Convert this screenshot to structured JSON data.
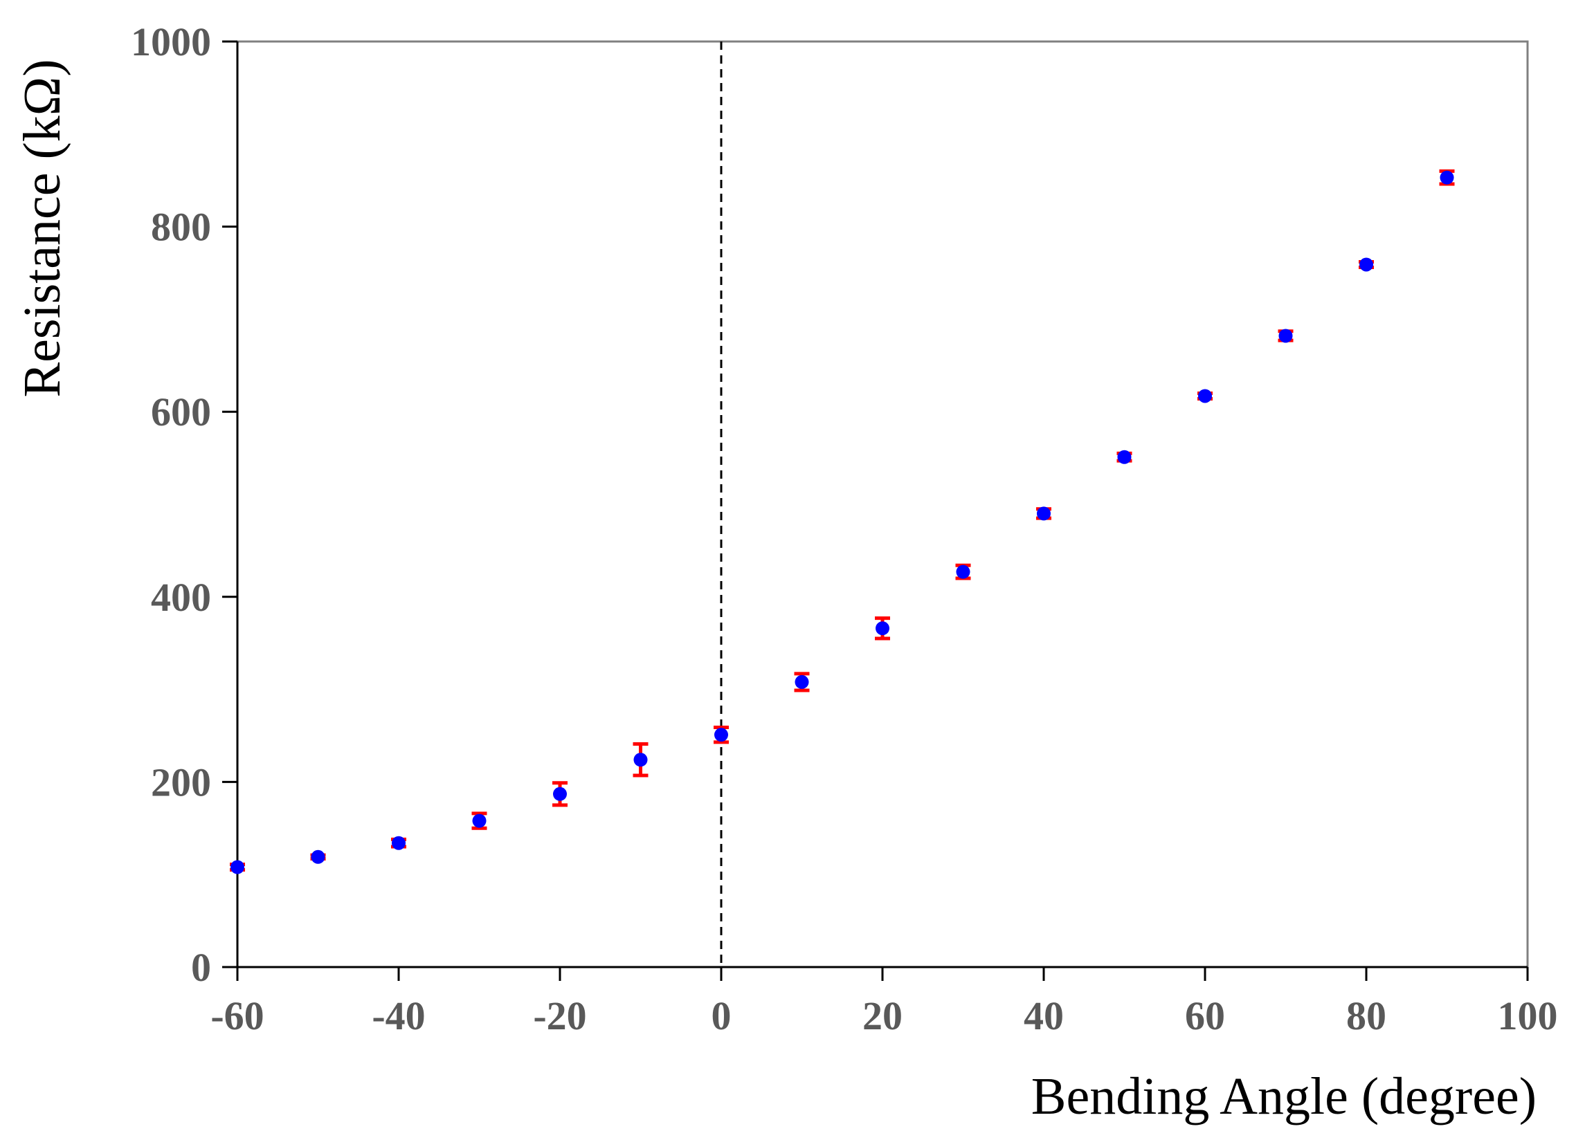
{
  "chart_data": {
    "type": "scatter",
    "xlabel": "Bending Angle (degree)",
    "ylabel": "Resistance (kΩ)",
    "xlim": [
      -60,
      100
    ],
    "ylim": [
      0,
      1000
    ],
    "x_ticks": [
      -60,
      -40,
      -20,
      0,
      20,
      40,
      60,
      80,
      100
    ],
    "y_ticks": [
      0,
      200,
      400,
      600,
      800,
      1000
    ],
    "grid": false,
    "reference_line": {
      "x": 0,
      "style": "dashed",
      "color": "#000000"
    },
    "marker_color": "#0000ff",
    "error_bar_color": "#ff0000",
    "series": [
      {
        "x": [
          -60,
          -50,
          -40,
          -30,
          -20,
          -10,
          0,
          10,
          20,
          30,
          40,
          50,
          60,
          70,
          80,
          90
        ],
        "y": [
          108,
          119,
          134,
          158,
          187,
          224,
          251,
          308,
          366,
          427,
          490,
          551,
          617,
          682,
          759,
          853
        ],
        "error": [
          3,
          2,
          4,
          8,
          12,
          17,
          8,
          9,
          11,
          7,
          5,
          4,
          3,
          5,
          3,
          7
        ]
      }
    ]
  }
}
